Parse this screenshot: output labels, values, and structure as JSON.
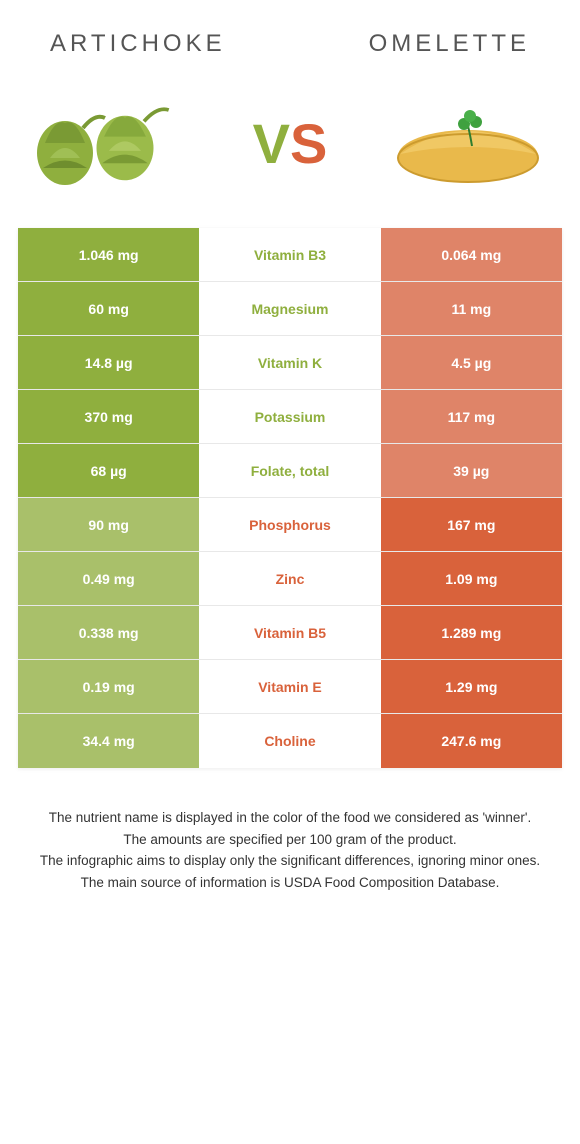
{
  "header": {
    "left_title": "ARTICHOKE",
    "right_title": "OMELETTE"
  },
  "vs": {
    "v": "V",
    "s": "S"
  },
  "colors": {
    "green_winner": "#8FAF3E",
    "green_loser": "#A9C06A",
    "orange_winner": "#D9623B",
    "orange_loser": "#DF8468",
    "white": "#ffffff"
  },
  "table": {
    "rows": [
      {
        "left": "1.046 mg",
        "mid": "Vitamin B3",
        "right": "0.064 mg",
        "winner": "left"
      },
      {
        "left": "60 mg",
        "mid": "Magnesium",
        "right": "11 mg",
        "winner": "left"
      },
      {
        "left": "14.8 µg",
        "mid": "Vitamin K",
        "right": "4.5 µg",
        "winner": "left"
      },
      {
        "left": "370 mg",
        "mid": "Potassium",
        "right": "117 mg",
        "winner": "left"
      },
      {
        "left": "68 µg",
        "mid": "Folate, total",
        "right": "39 µg",
        "winner": "left"
      },
      {
        "left": "90 mg",
        "mid": "Phosphorus",
        "right": "167 mg",
        "winner": "right"
      },
      {
        "left": "0.49 mg",
        "mid": "Zinc",
        "right": "1.09 mg",
        "winner": "right"
      },
      {
        "left": "0.338 mg",
        "mid": "Vitamin B5",
        "right": "1.289 mg",
        "winner": "right"
      },
      {
        "left": "0.19 mg",
        "mid": "Vitamin E",
        "right": "1.29 mg",
        "winner": "right"
      },
      {
        "left": "34.4 mg",
        "mid": "Choline",
        "right": "247.6 mg",
        "winner": "right"
      }
    ]
  },
  "notes": {
    "line1": "The nutrient name is displayed in the color of the food we considered as 'winner'.",
    "line2": "The amounts are specified per 100 gram of the product.",
    "line3": "The infographic aims to display only the significant differences, ignoring minor ones.",
    "line4": "The main source of information is USDA Food Composition Database."
  }
}
